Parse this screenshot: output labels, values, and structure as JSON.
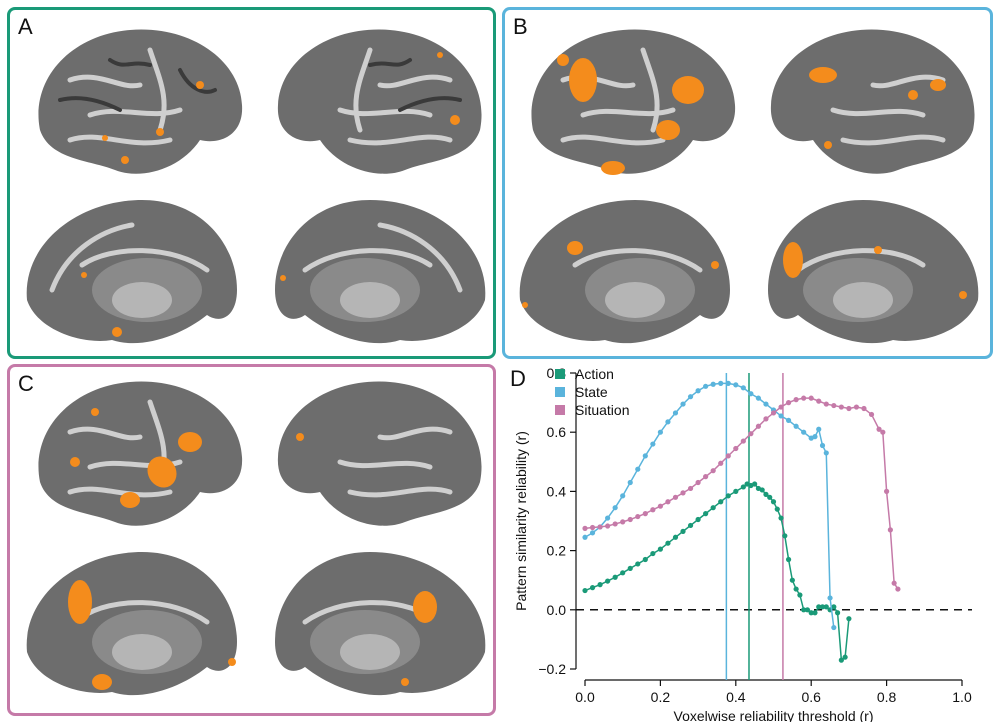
{
  "panels": [
    {
      "letter": "A",
      "color": "#1a9a78"
    },
    {
      "letter": "B",
      "color": "#5ab4dc"
    },
    {
      "letter": "C",
      "color": "#c57aa8"
    },
    {
      "letter": "D"
    }
  ],
  "colors": {
    "action": "#1a9a78",
    "state": "#5ab4dc",
    "situation": "#c57aa8",
    "activation": "#f48c1c",
    "cortex": "#6d6d6d"
  },
  "chart_data": {
    "type": "line",
    "xlabel": "Voxelwise reliability threshold (r)",
    "ylabel": "Pattern similarity reliability (r)",
    "xlim": [
      0,
      1.0
    ],
    "ylim": [
      -0.2,
      0.8
    ],
    "xticks": [
      "0.0",
      "0.2",
      "0.4",
      "0.6",
      "0.8",
      "1.0"
    ],
    "yticks": [
      "−0.2",
      "0.0",
      "0.2",
      "0.4",
      "0.6",
      "0.8"
    ],
    "legend_position": "top-left",
    "reference_line": {
      "y": 0.0,
      "style": "dashed"
    },
    "series": [
      {
        "name": "Action",
        "color": "#1a9a78",
        "threshold": 0.435,
        "x": [
          0.0,
          0.02,
          0.04,
          0.06,
          0.08,
          0.1,
          0.12,
          0.14,
          0.16,
          0.18,
          0.2,
          0.22,
          0.24,
          0.26,
          0.28,
          0.3,
          0.32,
          0.34,
          0.36,
          0.38,
          0.4,
          0.42,
          0.43,
          0.44,
          0.45,
          0.46,
          0.47,
          0.48,
          0.49,
          0.5,
          0.51,
          0.52,
          0.53,
          0.54,
          0.55,
          0.56,
          0.57,
          0.58,
          0.59,
          0.6,
          0.61,
          0.62,
          0.63,
          0.64,
          0.65,
          0.66,
          0.67,
          0.68,
          0.69,
          0.7
        ],
        "y": [
          0.065,
          0.075,
          0.085,
          0.097,
          0.11,
          0.125,
          0.14,
          0.155,
          0.17,
          0.19,
          0.205,
          0.225,
          0.245,
          0.265,
          0.285,
          0.305,
          0.325,
          0.345,
          0.365,
          0.385,
          0.4,
          0.415,
          0.425,
          0.42,
          0.425,
          0.41,
          0.405,
          0.39,
          0.38,
          0.365,
          0.34,
          0.31,
          0.25,
          0.17,
          0.1,
          0.07,
          0.05,
          0.0,
          0.0,
          -0.01,
          -0.01,
          0.01,
          0.01,
          0.01,
          0.0,
          0.01,
          -0.01,
          -0.17,
          -0.16,
          -0.03
        ]
      },
      {
        "name": "State",
        "color": "#5ab4dc",
        "threshold": 0.375,
        "x": [
          0.0,
          0.02,
          0.04,
          0.06,
          0.08,
          0.1,
          0.12,
          0.14,
          0.16,
          0.18,
          0.2,
          0.22,
          0.24,
          0.26,
          0.28,
          0.3,
          0.32,
          0.34,
          0.36,
          0.38,
          0.4,
          0.42,
          0.44,
          0.46,
          0.48,
          0.5,
          0.52,
          0.54,
          0.56,
          0.58,
          0.6,
          0.61,
          0.62,
          0.63,
          0.64,
          0.65,
          0.66
        ],
        "y": [
          0.245,
          0.26,
          0.28,
          0.31,
          0.345,
          0.385,
          0.43,
          0.475,
          0.52,
          0.56,
          0.6,
          0.635,
          0.665,
          0.695,
          0.72,
          0.74,
          0.755,
          0.762,
          0.765,
          0.765,
          0.76,
          0.75,
          0.73,
          0.715,
          0.695,
          0.675,
          0.655,
          0.64,
          0.62,
          0.6,
          0.58,
          0.585,
          0.61,
          0.555,
          0.53,
          0.04,
          -0.06
        ]
      },
      {
        "name": "Situation",
        "color": "#c57aa8",
        "threshold": 0.525,
        "x": [
          0.0,
          0.02,
          0.04,
          0.06,
          0.08,
          0.1,
          0.12,
          0.14,
          0.16,
          0.18,
          0.2,
          0.22,
          0.24,
          0.26,
          0.28,
          0.3,
          0.32,
          0.34,
          0.36,
          0.38,
          0.4,
          0.42,
          0.44,
          0.46,
          0.48,
          0.5,
          0.52,
          0.54,
          0.56,
          0.58,
          0.6,
          0.62,
          0.64,
          0.66,
          0.68,
          0.7,
          0.72,
          0.74,
          0.76,
          0.78,
          0.79,
          0.8,
          0.81,
          0.82,
          0.83
        ],
        "y": [
          0.275,
          0.278,
          0.28,
          0.283,
          0.29,
          0.297,
          0.305,
          0.315,
          0.325,
          0.338,
          0.35,
          0.365,
          0.38,
          0.395,
          0.41,
          0.43,
          0.45,
          0.47,
          0.495,
          0.52,
          0.545,
          0.57,
          0.595,
          0.62,
          0.645,
          0.665,
          0.685,
          0.7,
          0.71,
          0.715,
          0.715,
          0.705,
          0.695,
          0.69,
          0.685,
          0.68,
          0.685,
          0.68,
          0.66,
          0.61,
          0.6,
          0.4,
          0.27,
          0.09,
          0.07
        ]
      }
    ]
  }
}
